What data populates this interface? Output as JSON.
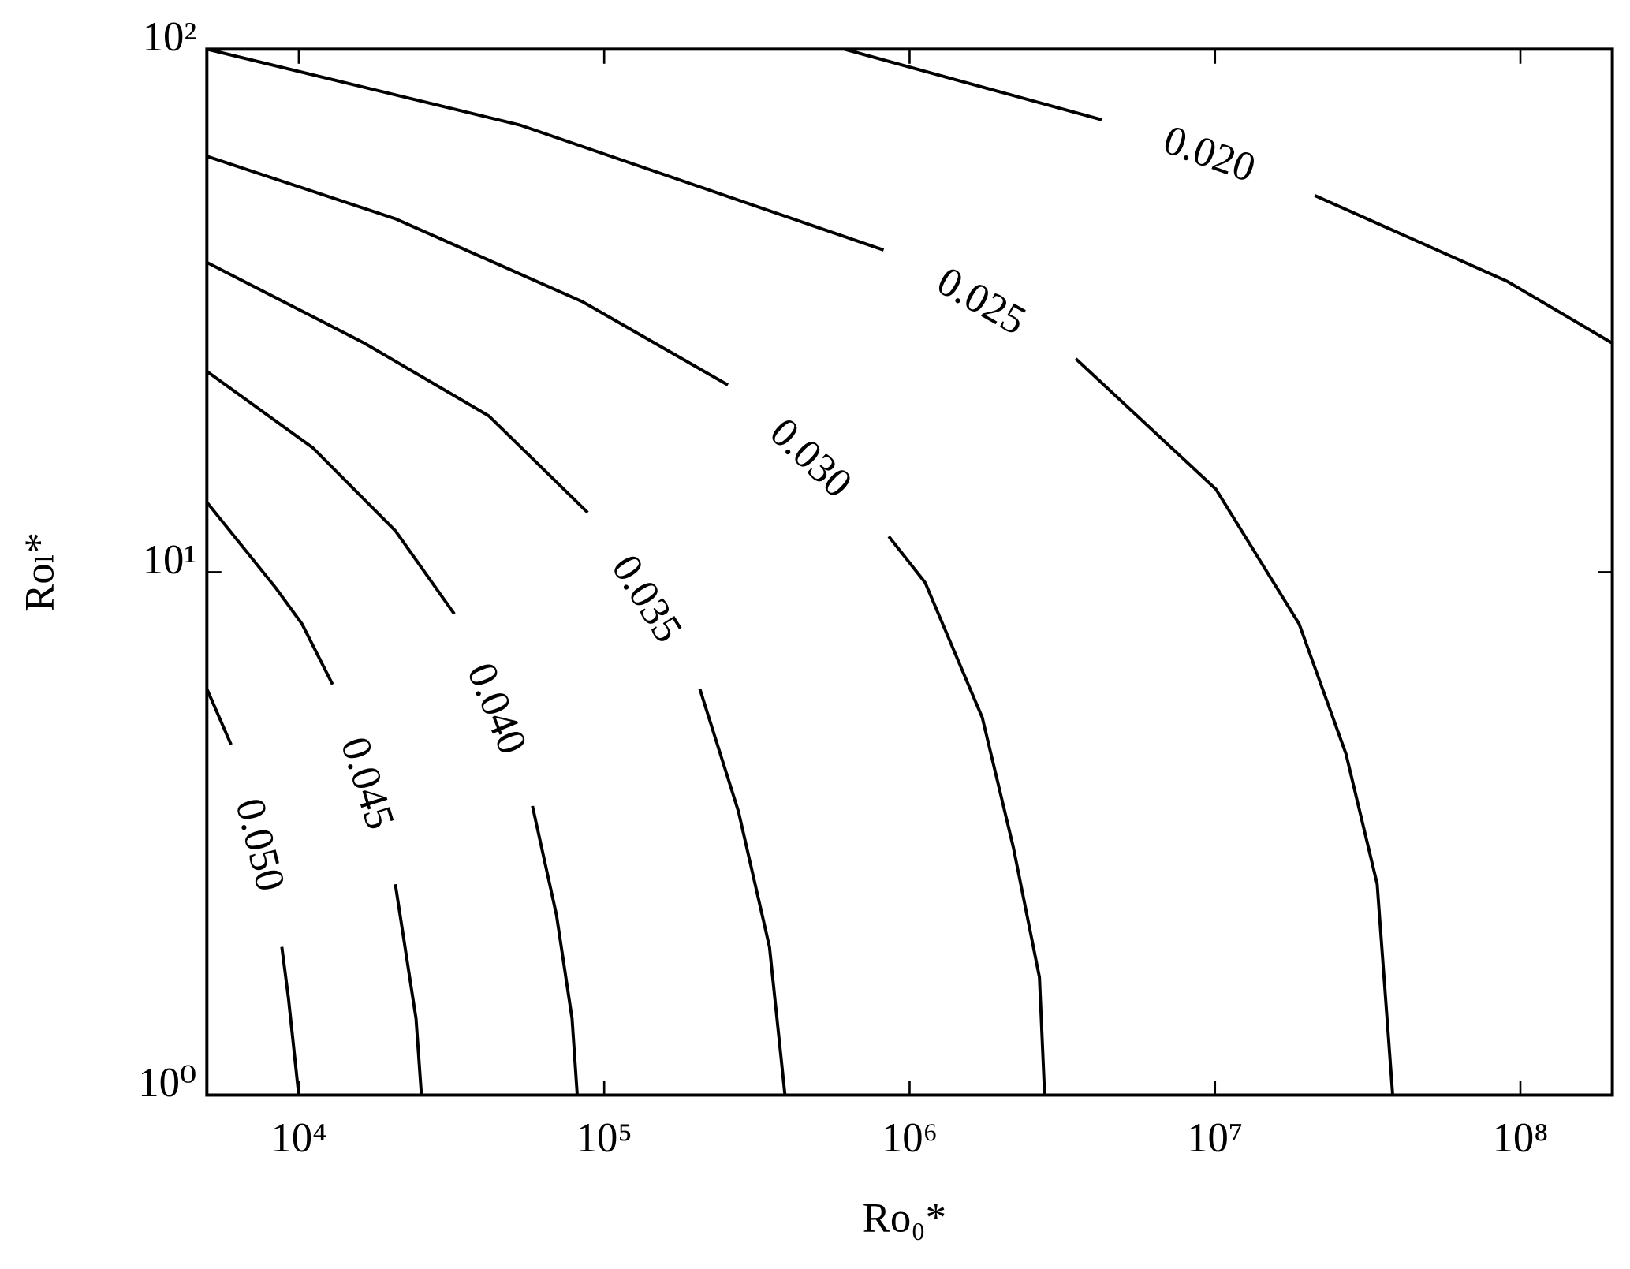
{
  "chart_data": {
    "type": "contour",
    "xlabel": "Ro₀*",
    "ylabel": "Roₗ*",
    "xscale": "log",
    "yscale": "log",
    "xlim": [
      5000,
      200000000
    ],
    "ylim": [
      1,
      100
    ],
    "xticks": [
      {
        "value": 10000,
        "label": "10⁴"
      },
      {
        "value": 100000,
        "label": "10⁵"
      },
      {
        "value": 1000000,
        "label": "10⁶"
      },
      {
        "value": 10000000,
        "label": "10⁷"
      },
      {
        "value": 100000000,
        "label": "10⁸"
      }
    ],
    "yticks": [
      {
        "value": 1,
        "label": "10⁰"
      },
      {
        "value": 10,
        "label": "10¹"
      },
      {
        "value": 100,
        "label": "10²"
      }
    ],
    "series": [
      {
        "name": "0.020",
        "color": "#000000",
        "x": [
          611000,
          4256000,
          null,
          21220000,
          90400000,
          200000000
        ],
        "y": [
          100,
          73.3,
          null,
          52.5,
          36.0,
          27.4
        ]
      },
      {
        "name": "0.025",
        "color": "#000000",
        "x": [
          5000,
          53000,
          822000,
          null,
          3500000,
          10070000,
          18860000,
          26850000,
          33960000,
          38190000
        ],
        "y": [
          100,
          71.6,
          41.3,
          null,
          25.6,
          14.4,
          7.96,
          4.49,
          2.53,
          1
        ]
      },
      {
        "name": "0.030",
        "color": "#000000",
        "x": [
          5000,
          20700,
          84900,
          254000,
          null,
          855000,
          1125000,
          1730000,
          2188000,
          2661000,
          2768000
        ],
        "y": [
          62.4,
          47.4,
          32.9,
          22.8,
          null,
          11.7,
          9.55,
          5.27,
          2.97,
          1.68,
          1
        ]
      },
      {
        "name": "0.035",
        "color": "#000000",
        "x": [
          5000,
          16400,
          41900,
          88300,
          null,
          205600,
          275000,
          347600,
          390800
        ],
        "y": [
          39.1,
          27.4,
          19.9,
          13.0,
          null,
          5.98,
          3.49,
          1.92,
          1
        ]
      },
      {
        "name": "0.040",
        "color": "#000000",
        "x": [
          5000,
          11100,
          20700,
          32300,
          null,
          58200,
          69800,
          78500,
          81600
        ],
        "y": [
          24.2,
          17.3,
          12.0,
          8.32,
          null,
          3.57,
          2.21,
          1.4,
          1
        ]
      },
      {
        "name": "0.045",
        "color": "#000000",
        "x": [
          5000,
          8400,
          10240,
          12900,
          null,
          20700,
          24200,
          25200
        ],
        "y": [
          13.6,
          9.33,
          7.96,
          6.1,
          null,
          2.53,
          1.4,
          1
        ]
      },
      {
        "name": "0.050",
        "color": "#000000",
        "x": [
          5000,
          6000,
          null,
          8800,
          9250,
          10000
        ],
        "y": [
          5.98,
          4.68,
          null,
          1.92,
          1.53,
          1
        ]
      }
    ]
  }
}
